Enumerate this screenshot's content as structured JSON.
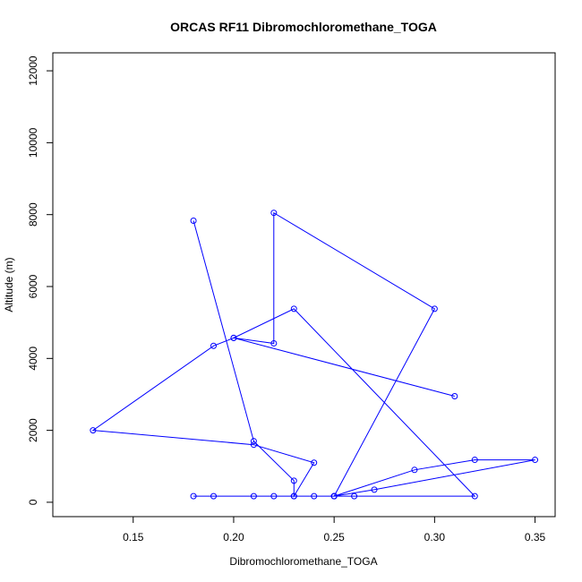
{
  "chart_data": {
    "type": "line",
    "title": "ORCAS RF11 Dibromochloromethane_TOGA",
    "xlabel": "Dibromochloromethane_TOGA",
    "ylabel": "Altitude (m)",
    "xlim": [
      0.11,
      0.36
    ],
    "ylim": [
      -400,
      12500
    ],
    "xticks": [
      0.15,
      0.2,
      0.25,
      0.3,
      0.35
    ],
    "xtick_labels": [
      "0.15",
      "0.20",
      "0.25",
      "0.30",
      "0.35"
    ],
    "yticks": [
      0,
      2000,
      4000,
      6000,
      8000,
      10000,
      12000
    ],
    "ytick_labels": [
      "0",
      "2000",
      "4000",
      "6000",
      "8000",
      "10000",
      "12000"
    ],
    "grid": false,
    "series": [
      {
        "color": "#0000ff",
        "markers": "open-circle",
        "points": [
          {
            "x": 0.18,
            "y": 170
          },
          {
            "x": 0.19,
            "y": 170
          },
          {
            "x": 0.18,
            "y": 170
          },
          {
            "x": 0.21,
            "y": 170
          },
          {
            "x": 0.23,
            "y": 170
          },
          {
            "x": 0.19,
            "y": 170
          },
          {
            "x": 0.22,
            "y": 170
          },
          {
            "x": 0.25,
            "y": 170
          },
          {
            "x": 0.23,
            "y": 170
          },
          {
            "x": 0.26,
            "y": 170
          },
          {
            "x": 0.24,
            "y": 170
          },
          {
            "x": 0.25,
            "y": 170
          },
          {
            "x": 0.32,
            "y": 170
          },
          {
            "x": 0.23,
            "y": 5380
          },
          {
            "x": 0.2,
            "y": 4570
          },
          {
            "x": 0.31,
            "y": 2950
          },
          {
            "x": 0.31,
            "y": 2950
          },
          {
            "x": 0.31,
            "y": 2950
          },
          {
            "x": 0.31,
            "y": 2950
          },
          {
            "x": 0.31,
            "y": 2950
          },
          {
            "x": 0.31,
            "y": 2950
          },
          {
            "x": 0.31,
            "y": 2950
          }
        ]
      }
    ],
    "path": [
      {
        "x": 0.18,
        "y": 160
      },
      {
        "x": 0.19,
        "y": 180
      },
      {
        "x": 0.21,
        "y": 160
      },
      {
        "x": 0.23,
        "y": 170
      },
      {
        "x": 0.19,
        "y": 160
      },
      {
        "x": 0.22,
        "y": 170
      },
      {
        "x": 0.25,
        "y": 160
      },
      {
        "x": 0.23,
        "y": 170
      },
      {
        "x": 0.26,
        "y": 160
      },
      {
        "x": 0.24,
        "y": 170
      },
      {
        "x": 0.25,
        "y": 170
      },
      {
        "x": 0.32,
        "y": 170
      },
      {
        "x": 0.23,
        "y": 5380
      },
      {
        "x": 0.2,
        "y": 4570
      },
      {
        "x": 0.31,
        "y": 2950
      }
    ]
  }
}
